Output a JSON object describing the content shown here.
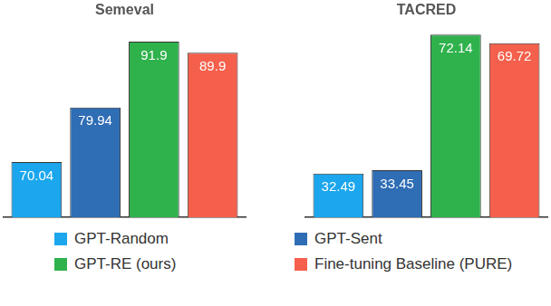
{
  "chart_data": [
    {
      "type": "bar",
      "title": "Semeval",
      "categories": [
        null
      ],
      "series": [
        {
          "name": "GPT-Random",
          "color": "#1ba6ee",
          "values": [
            70.04
          ]
        },
        {
          "name": "GPT-Sent",
          "color": "#2f6db5",
          "values": [
            79.94
          ]
        },
        {
          "name": "GPT-RE (ours)",
          "color": "#2fb24c",
          "values": [
            91.9
          ]
        },
        {
          "name": "Fine-tuning Baseline (PURE)",
          "color": "#f4604c",
          "values": [
            89.9
          ]
        }
      ],
      "ylim": [
        60,
        95
      ],
      "tick_labels": false,
      "grid": false,
      "data_labels": true,
      "legend": "bottom"
    },
    {
      "type": "bar",
      "title": "TACRED",
      "categories": [
        null
      ],
      "series": [
        {
          "name": "GPT-Random",
          "color": "#1ba6ee",
          "values": [
            32.49
          ]
        },
        {
          "name": "GPT-Sent",
          "color": "#2f6db5",
          "values": [
            33.45
          ]
        },
        {
          "name": "GPT-RE (ours)",
          "color": "#2fb24c",
          "values": [
            72.14
          ]
        },
        {
          "name": "Fine-tuning Baseline (PURE)",
          "color": "#f4604c",
          "values": [
            69.72
          ]
        }
      ],
      "ylim": [
        20,
        75
      ],
      "tick_labels": false,
      "grid": false,
      "data_labels": true,
      "legend": "bottom"
    }
  ]
}
